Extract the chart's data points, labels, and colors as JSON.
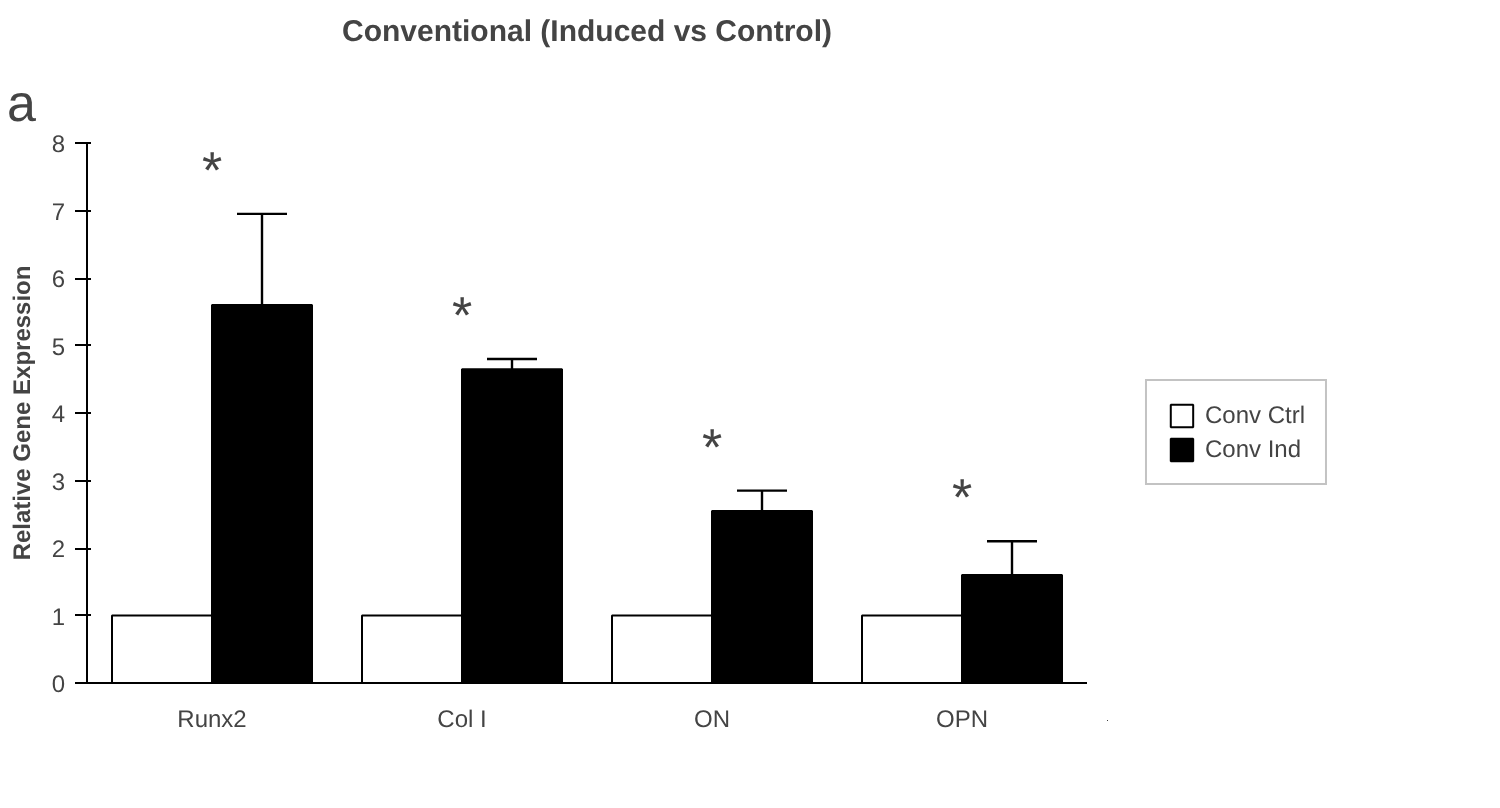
{
  "chart_data": {
    "type": "bar",
    "title": "Conventional (Induced vs Control)",
    "ylabel": "Relative Gene Expression",
    "categories": [
      "Runx2",
      "Col I",
      "ON",
      "OPN"
    ],
    "series": [
      {
        "name": "Conv Ctrl",
        "color": "#ffffff",
        "values": [
          1,
          1,
          1,
          1
        ]
      },
      {
        "name": "Conv Ind",
        "color": "#000000",
        "values": [
          5.6,
          4.65,
          2.55,
          1.6
        ],
        "errors": [
          [
            5.6,
            6.95
          ],
          [
            4.65,
            4.8
          ],
          [
            2.55,
            2.85
          ],
          [
            1.6,
            2.1
          ]
        ]
      }
    ],
    "ylim": [
      0,
      8
    ],
    "yticks": [
      0,
      1,
      2,
      3,
      4,
      5,
      6,
      7,
      8
    ],
    "grid": false,
    "legend": "right",
    "annotations": [
      "a",
      "*",
      "*",
      "*",
      "*"
    ]
  }
}
